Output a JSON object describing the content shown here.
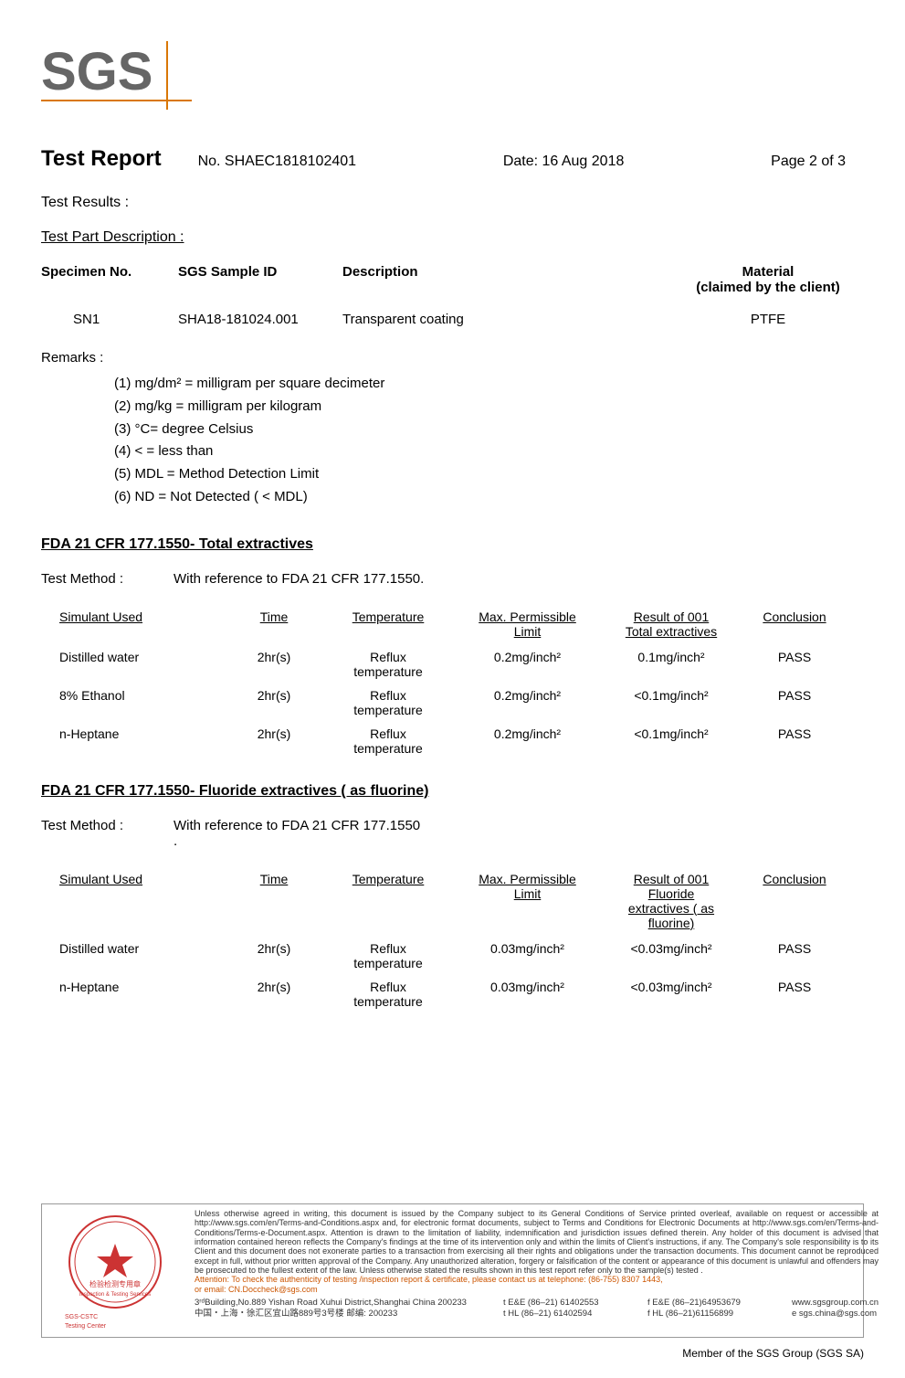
{
  "logo": {
    "text": "SGS",
    "text_color": "#666666",
    "accent_color": "#d97706"
  },
  "header": {
    "title": "Test Report",
    "report_no": "No. SHAEC1818102401",
    "date": "Date: 16 Aug 2018",
    "page": "Page 2 of 3"
  },
  "test_results_label": "Test Results :",
  "test_part_desc_label": "Test Part Description :",
  "part_desc": {
    "headers": {
      "specimen": "Specimen No.",
      "sampleid": "SGS Sample ID",
      "description": "Description",
      "material": "Material",
      "material_sub": "(claimed by the client)"
    },
    "row": {
      "specimen": "SN1",
      "sampleid": "SHA18-181024.001",
      "description": "Transparent coating",
      "material": "PTFE"
    }
  },
  "remarks": {
    "label": "Remarks :",
    "items": [
      "(1) mg/dm² = milligram per square decimeter",
      "(2) mg/kg = milligram per kilogram",
      "(3) °C= degree Celsius",
      "(4) < = less than",
      "(5) MDL = Method Detection Limit",
      "(6) ND = Not Detected ( < MDL)"
    ]
  },
  "test1": {
    "title": "FDA 21 CFR 177.1550- Total extractives",
    "method_label": "Test Method :",
    "method": "With reference to  FDA 21 CFR 177.1550.",
    "headers": {
      "simulant": "Simulant Used",
      "time": "Time",
      "temp": "Temperature",
      "limit1": "Max. Permissible",
      "limit2": "Limit",
      "result1": "Result of 001",
      "result2": "Total extractives",
      "conclusion": "Conclusion"
    },
    "rows": [
      {
        "simulant": "Distilled water",
        "time": "2hr(s)",
        "temp1": "Reflux",
        "temp2": "temperature",
        "limit": "0.2mg/inch²",
        "result": "0.1mg/inch²",
        "conclusion": "PASS"
      },
      {
        "simulant": "8% Ethanol",
        "time": "2hr(s)",
        "temp1": "Reflux",
        "temp2": "temperature",
        "limit": "0.2mg/inch²",
        "result": "<0.1mg/inch²",
        "conclusion": "PASS"
      },
      {
        "simulant": "n-Heptane",
        "time": "2hr(s)",
        "temp1": "Reflux",
        "temp2": "temperature",
        "limit": "0.2mg/inch²",
        "result": "<0.1mg/inch²",
        "conclusion": "PASS"
      }
    ]
  },
  "test2": {
    "title": "FDA 21 CFR 177.1550- Fluoride extractives ( as fluorine)",
    "method_label": "Test Method :",
    "method": "With reference to FDA 21 CFR 177.1550",
    "method_dot": ".",
    "headers": {
      "simulant": "Simulant Used",
      "time": "Time",
      "temp": "Temperature",
      "limit1": "Max. Permissible",
      "limit2": "Limit",
      "result1": "Result of 001",
      "result2": "Fluoride",
      "result3": "extractives ( as",
      "result4": "fluorine)",
      "conclusion": "Conclusion"
    },
    "rows": [
      {
        "simulant": "Distilled water",
        "time": "2hr(s)",
        "temp1": "Reflux",
        "temp2": "temperature",
        "limit": "0.03mg/inch²",
        "result": "<0.03mg/inch²",
        "conclusion": "PASS"
      },
      {
        "simulant": "n-Heptane",
        "time": "2hr(s)",
        "temp1": "Reflux",
        "temp2": "temperature",
        "limit": "0.03mg/inch²",
        "result": "<0.03mg/inch²",
        "conclusion": "PASS"
      }
    ]
  },
  "footer": {
    "stamp": {
      "circle_color": "#cc3333",
      "text1": "检验检测专用章",
      "text2": "Inspection & Testing Services",
      "text3": "SGS-CSTC",
      "text4": "Testing Center"
    },
    "disclaimer": "Unless otherwise agreed in writing, this document is issued by the Company subject to its General Conditions of Service printed overleaf, available on request or accessible at http://www.sgs.com/en/Terms-and-Conditions.aspx and, for electronic format documents, subject to Terms and Conditions for Electronic Documents at http://www.sgs.com/en/Terms-and-Conditions/Terms-e-Document.aspx. Attention is drawn to the limitation of liability, indemnification and jurisdiction issues defined therein. Any holder of this document is advised that information contained hereon reflects the Company's findings at the time of its intervention only and within the limits of Client's instructions, if any. The Company's sole responsibility is to its Client and this document does not exonerate parties to a transaction from exercising all their rights and obligations under the transaction documents. This document cannot be reproduced except in full, without prior written approval of the Company. Any unauthorized alteration, forgery or falsification of the content or appearance of this document is unlawful and offenders may be prosecuted to the fullest extent of the law. Unless otherwise stated the results shown in this test report refer only to the sample(s) tested .",
    "attention": "Attention: To check the authenticity of testing /inspection report & certificate, please contact us at telephone: (86-755) 8307 1443,",
    "email_line": "or email: CN.Doccheck@sgs.com",
    "address": {
      "line1_en": "3ʳᵈBuilding,No.889 Yishan Road Xuhui District,Shanghai China    200233",
      "line1_cn": "中国・上海・徐汇区宜山路889号3号楼    邮编: 200233",
      "tel_e": "t E&E (86–21) 61402553",
      "fax_e": "f E&E (86–21)64953679",
      "tel_h": "t HL (86–21) 61402594",
      "fax_h": "f HL (86–21)61156899",
      "web": "www.sgsgroup.com.cn",
      "email": "e  sgs.china@sgs.com"
    },
    "member": "Member of the SGS Group (SGS SA)"
  }
}
